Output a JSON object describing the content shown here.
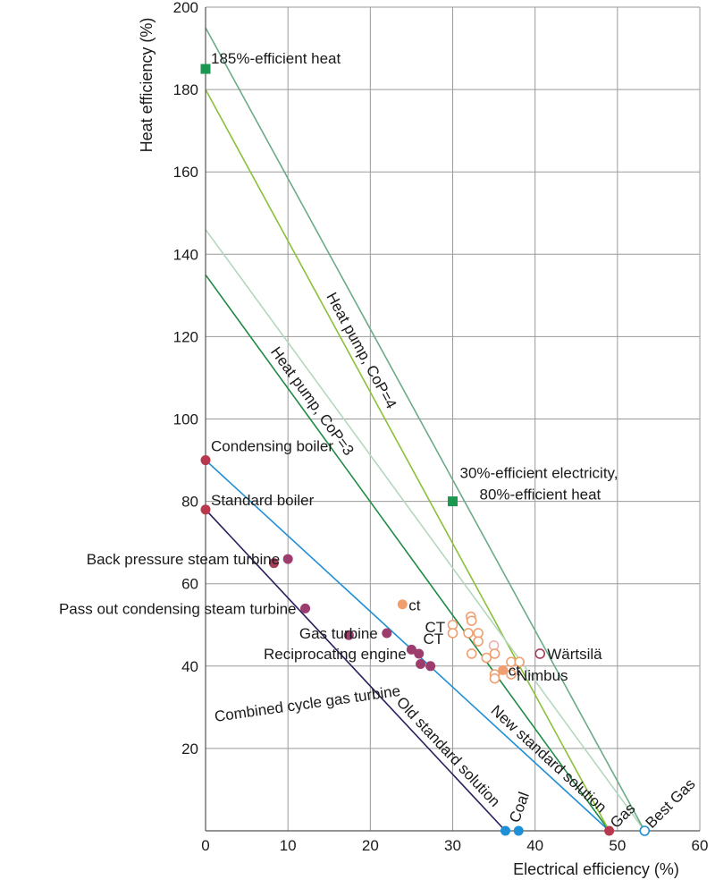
{
  "chart_data": {
    "type": "scatter",
    "xlabel": "Electrical efficiency (%)",
    "ylabel": "Heat efficiency (%)",
    "xlim": [
      0,
      60
    ],
    "ylim": [
      0,
      200
    ],
    "x_ticks": [
      "0",
      "10",
      "20",
      "30",
      "40",
      "50",
      "60"
    ],
    "y_ticks": [
      "20",
      "40",
      "60",
      "80",
      "100",
      "120",
      "140",
      "160",
      "180",
      "200"
    ],
    "grid": true,
    "lines": [
      {
        "label": "",
        "color": "#2a1d5c",
        "points": [
          [
            0,
            78
          ],
          [
            36.4,
            0
          ]
        ]
      },
      {
        "label": "",
        "color": "#1f8fd6",
        "points": [
          [
            0,
            90
          ],
          [
            49,
            0
          ]
        ]
      },
      {
        "label": "",
        "color": "#1e8a44",
        "points": [
          [
            0,
            135
          ],
          [
            49,
            0
          ]
        ]
      },
      {
        "label": "",
        "color": "#8cbf3a",
        "points": [
          [
            0,
            180
          ],
          [
            49,
            0
          ]
        ]
      },
      {
        "label": "",
        "color": "#b5d7bd",
        "points": [
          [
            0,
            146
          ],
          [
            53.3,
            0
          ]
        ]
      },
      {
        "label": "",
        "color": "#6aab88",
        "points": [
          [
            0,
            195
          ],
          [
            53.3,
            0
          ]
        ]
      }
    ],
    "line_labels": [
      {
        "text": "Heat pump, CoP=4",
        "color": "#8cbf3a"
      },
      {
        "text": "Heat pump, CoP=3",
        "color": "#1e8a44"
      },
      {
        "text": "New standard solution",
        "color": "#1f8fd6"
      },
      {
        "text": "Old standard solution",
        "color": "#2a1d5c"
      }
    ],
    "points": [
      {
        "x": 0,
        "y": 185,
        "marker": "square",
        "color": "#1a9850",
        "label": "185%-efficient heat"
      },
      {
        "x": 30,
        "y": 80,
        "marker": "square",
        "color": "#1a9850",
        "label": "30%-efficient electricity,\n80%-efficient heat"
      },
      {
        "x": 0,
        "y": 90,
        "marker": "circle",
        "color": "#b8394d",
        "label": "Condensing boiler"
      },
      {
        "x": 0,
        "y": 78,
        "marker": "circle",
        "color": "#b8394d",
        "label": "Standard boiler"
      },
      {
        "x": 10,
        "y": 66,
        "marker": "circle",
        "color": "#9c3d6e",
        "label": "Back pressure steam turbine"
      },
      {
        "x": 8.3,
        "y": 65,
        "marker": "circle",
        "color": "#a83e5a",
        "label": ""
      },
      {
        "x": 12.1,
        "y": 54,
        "marker": "circle",
        "color": "#9c3d6e",
        "label": "Pass out condensing steam turbine"
      },
      {
        "x": 17.4,
        "y": 47.5,
        "marker": "circle",
        "color": "#9c3d6e",
        "label": ""
      },
      {
        "x": 22,
        "y": 48,
        "marker": "circle",
        "color": "#9c3d6e",
        "label": "Gas turbine"
      },
      {
        "x": 25,
        "y": 44,
        "marker": "circle",
        "color": "#9c3d6e",
        "label": ""
      },
      {
        "x": 25.9,
        "y": 43,
        "marker": "circle",
        "color": "#9c3d6e",
        "label": "Reciprocating engine"
      },
      {
        "x": 26.1,
        "y": 40.5,
        "marker": "circle",
        "color": "#9c3d6e",
        "label": ""
      },
      {
        "x": 27.3,
        "y": 40,
        "marker": "circle",
        "color": "#9c3d6e",
        "label": "Combined cycle gas turbine"
      },
      {
        "x": 23.9,
        "y": 55,
        "marker": "circle",
        "color": "#f0a070",
        "label": "ct"
      },
      {
        "x": 30,
        "y": 50,
        "marker": "open",
        "color": "#f0a070",
        "label": "CT"
      },
      {
        "x": 30,
        "y": 48,
        "marker": "open",
        "color": "#f0a070",
        "label": "CT"
      },
      {
        "x": 32.2,
        "y": 52,
        "marker": "open",
        "color": "#f0a070",
        "label": ""
      },
      {
        "x": 32.3,
        "y": 51,
        "marker": "open",
        "color": "#f0a070",
        "label": ""
      },
      {
        "x": 31.9,
        "y": 48,
        "marker": "open",
        "color": "#f0a070",
        "label": ""
      },
      {
        "x": 33.1,
        "y": 48,
        "marker": "open",
        "color": "#f0a070",
        "label": ""
      },
      {
        "x": 33.1,
        "y": 46,
        "marker": "open",
        "color": "#f0a070",
        "label": ""
      },
      {
        "x": 32.3,
        "y": 43,
        "marker": "open",
        "color": "#f0a070",
        "label": ""
      },
      {
        "x": 34.1,
        "y": 42,
        "marker": "open",
        "color": "#f0a070",
        "label": ""
      },
      {
        "x": 35,
        "y": 45,
        "marker": "open",
        "color": "#f0b0b0",
        "label": "CT"
      },
      {
        "x": 35.1,
        "y": 43,
        "marker": "open",
        "color": "#f0a070",
        "label": ""
      },
      {
        "x": 37.1,
        "y": 41,
        "marker": "open",
        "color": "#f0a070",
        "label": ""
      },
      {
        "x": 38.1,
        "y": 41,
        "marker": "open",
        "color": "#f0a070",
        "label": ""
      },
      {
        "x": 35.1,
        "y": 38,
        "marker": "open",
        "color": "#f0a070",
        "label": ""
      },
      {
        "x": 35.1,
        "y": 37,
        "marker": "open",
        "color": "#f0a070",
        "label": ""
      },
      {
        "x": 37.1,
        "y": 38,
        "marker": "open",
        "color": "#f0a070",
        "label": "Nimbus"
      },
      {
        "x": 36.1,
        "y": 39,
        "marker": "circle",
        "color": "#f0a070",
        "label": "ct"
      },
      {
        "x": 40.6,
        "y": 43,
        "marker": "open",
        "color": "#a83e5a",
        "label": "Wärtsilä"
      },
      {
        "x": 49,
        "y": 0,
        "marker": "circle",
        "color": "#b8394d",
        "label": "Gas"
      },
      {
        "x": 53.3,
        "y": 0,
        "marker": "open",
        "color": "#1f8fd6",
        "label": "Best Gas"
      },
      {
        "x": 36.4,
        "y": 0,
        "marker": "circle",
        "color": "#1f8fd6",
        "label": ""
      },
      {
        "x": 38,
        "y": 0,
        "marker": "circle",
        "color": "#1f8fd6",
        "label": "Coal"
      }
    ]
  }
}
